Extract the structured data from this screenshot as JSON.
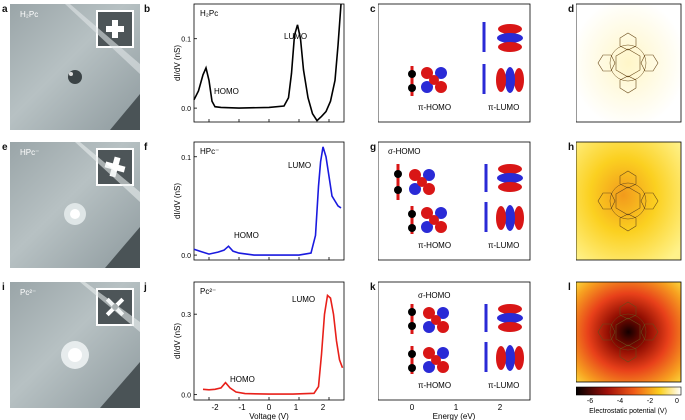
{
  "panels": {
    "a": {
      "letter": "a",
      "molecule": "H₂Pc"
    },
    "b": {
      "letter": "b",
      "molecule": "H₂Pc",
      "homo": "HOMO",
      "lumo": "LUMO",
      "ylabel": "dI/dV (nS)",
      "yticks": [
        "0.0",
        "0.1"
      ],
      "color": "#000000"
    },
    "c": {
      "letter": "c",
      "pi_homo": "π-HOMO",
      "pi_lumo": "π-LUMO"
    },
    "d": {
      "letter": "d"
    },
    "e": {
      "letter": "e",
      "molecule": "HPc⁻"
    },
    "f": {
      "letter": "f",
      "molecule": "HPc⁻",
      "homo": "HOMO",
      "lumo": "LUMO",
      "ylabel": "dI/dV (nS)",
      "yticks": [
        "0.0",
        "0.1"
      ],
      "color": "#1a1adf"
    },
    "g": {
      "letter": "g",
      "sigma_homo": "σ-HOMO",
      "pi_homo": "π-HOMO",
      "pi_lumo": "π-LUMO"
    },
    "h": {
      "letter": "h"
    },
    "i": {
      "letter": "i",
      "molecule": "Pc²⁻"
    },
    "j": {
      "letter": "j",
      "molecule": "Pc²⁻",
      "homo": "HOMO",
      "lumo": "LUMO",
      "ylabel": "dI/dV (nS)",
      "yticks": [
        "0.0",
        "0.3"
      ],
      "color": "#e8201a"
    },
    "k": {
      "letter": "k",
      "sigma_homo": "σ-HOMO",
      "pi_homo": "π-HOMO",
      "pi_lumo": "π-LUMO"
    },
    "l": {
      "letter": "l"
    }
  },
  "voltage_axis": {
    "label": "Voltage (V)",
    "ticks": [
      "-2",
      "-1",
      "0",
      "1",
      "2"
    ]
  },
  "energy_axis": {
    "label": "Energy (eV)",
    "ticks": [
      "0",
      "1",
      "2"
    ]
  },
  "colorbar": {
    "label": "Electrostatic potential (V)",
    "ticks": [
      "-6",
      "-4",
      "-2",
      "0"
    ]
  },
  "chart_data": [
    {
      "type": "line",
      "panel": "b",
      "xlim": [
        -2.5,
        2.5
      ],
      "ylim": [
        -0.02,
        0.15
      ],
      "x": [
        -2.5,
        -2.35,
        -2.2,
        -2.1,
        -2.0,
        -1.9,
        -1.8,
        -1.6,
        -1.0,
        0.0,
        0.5,
        0.65,
        0.75,
        0.85,
        0.95,
        1.05,
        1.15,
        1.3,
        1.45,
        1.6,
        1.75,
        1.9,
        2.05,
        2.2,
        2.3,
        2.4
      ],
      "y": [
        0.012,
        0.025,
        0.048,
        0.058,
        0.04,
        0.01,
        0.002,
        0.001,
        0.0,
        0.001,
        0.003,
        0.015,
        0.05,
        0.105,
        0.12,
        0.1,
        0.055,
        0.015,
        -0.008,
        -0.018,
        -0.012,
        -0.005,
        0.01,
        0.04,
        0.09,
        0.15
      ]
    },
    {
      "type": "line",
      "panel": "f",
      "xlim": [
        -2.5,
        2.5
      ],
      "ylim": [
        -0.005,
        0.115
      ],
      "x": [
        -2.5,
        -2.3,
        -2.0,
        -1.7,
        -1.5,
        -1.35,
        -1.2,
        -1.0,
        -0.5,
        0.0,
        0.5,
        1.0,
        1.4,
        1.55,
        1.65,
        1.72,
        1.8,
        1.9,
        2.0,
        2.1,
        2.2,
        2.3,
        2.4
      ],
      "y": [
        0.006,
        0.004,
        0.001,
        0.003,
        0.005,
        0.009,
        0.004,
        0.002,
        0.0,
        0.0,
        0.0,
        0.0,
        0.002,
        0.02,
        0.07,
        0.095,
        0.11,
        0.1,
        0.08,
        0.06,
        0.055,
        0.05,
        0.048
      ]
    },
    {
      "type": "line",
      "panel": "j",
      "xlim": [
        -2.5,
        2.5
      ],
      "ylim": [
        -0.02,
        0.42
      ],
      "x": [
        -2.2,
        -2.0,
        -1.8,
        -1.6,
        -1.45,
        -1.3,
        -1.1,
        -0.8,
        0.0,
        0.8,
        1.5,
        1.65,
        1.75,
        1.85,
        1.95,
        2.05,
        2.15,
        2.25,
        2.35,
        2.45
      ],
      "y": [
        0.02,
        0.018,
        0.02,
        0.025,
        0.045,
        0.025,
        0.01,
        0.004,
        0.002,
        0.002,
        0.005,
        0.03,
        0.15,
        0.3,
        0.37,
        0.36,
        0.3,
        0.2,
        0.13,
        0.1
      ]
    }
  ]
}
